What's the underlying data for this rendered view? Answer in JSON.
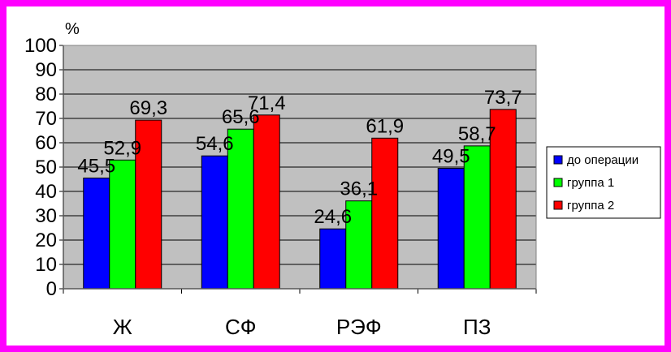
{
  "chart_data": {
    "type": "bar",
    "unit_label": "%",
    "categories": [
      "Ж",
      "СФ",
      "РЭФ",
      "ПЗ"
    ],
    "series": [
      {
        "name": "до операции",
        "color": "#0000ff",
        "values": [
          45.5,
          54.6,
          24.6,
          49.5
        ],
        "labels": [
          "45,5",
          "54,6",
          "24,6",
          "49,5"
        ]
      },
      {
        "name": "группа 1",
        "color": "#00ff00",
        "values": [
          52.9,
          65.6,
          36.1,
          58.7
        ],
        "labels": [
          "52,9",
          "65,6",
          "36,1",
          "58,7"
        ]
      },
      {
        "name": "группа 2",
        "color": "#ff0000",
        "values": [
          69.3,
          71.4,
          61.9,
          73.7
        ],
        "labels": [
          "69,3",
          "71,4",
          "61,9",
          "73,7"
        ]
      }
    ],
    "y_ticks": [
      "0",
      "10",
      "20",
      "30",
      "40",
      "50",
      "60",
      "70",
      "80",
      "90",
      "100"
    ],
    "ylim": [
      0,
      100
    ],
    "grid": true,
    "legend": "right",
    "plot_background": "#c0c0c0",
    "frame_color": "#ff00ff"
  }
}
